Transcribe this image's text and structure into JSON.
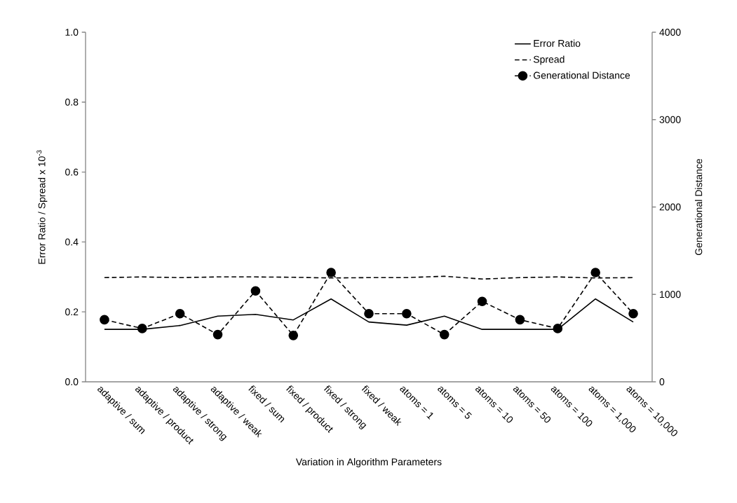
{
  "chart_data": {
    "type": "line",
    "xlabel": "Variation in Algorithm Parameters",
    "ylabel": "Error Ratio / Spread x 10$^{-3}$",
    "y2label": "Generational Distance",
    "categories": [
      "adaptive / sum",
      "adaptive / product",
      "adaptive / strong",
      "adaptive / weak",
      "fixed / sum",
      "fixed / product",
      "fixed / strong",
      "fixed / weak",
      "atoms = 1",
      "atoms = 5",
      "atoms = 10",
      "atoms = 50",
      "atoms = 100",
      "atoms = 1,000",
      "atoms = 10,000"
    ],
    "series": [
      {
        "name": "Error Ratio",
        "color": "#000000",
        "line_style": "solid",
        "marker": "none",
        "values": [
          0.15,
          0.15,
          0.161,
          0.188,
          0.193,
          0.177,
          0.237,
          0.171,
          0.162,
          0.188,
          0.15,
          0.15,
          0.15,
          0.237,
          0.171
        ]
      },
      {
        "name": "Spread",
        "color": "#000000",
        "line_style": "dashed",
        "marker": "none",
        "values": [
          0.298,
          0.3,
          0.298,
          0.3,
          0.3,
          0.299,
          0.297,
          0.298,
          0.298,
          0.302,
          0.294,
          0.298,
          0.3,
          0.297,
          0.298
        ]
      },
      {
        "name": "Generational Distance",
        "color": "#000000",
        "line_style": "dashed",
        "marker": "circle",
        "axis": "y2",
        "values": [
          710,
          610,
          780,
          540,
          1040,
          530,
          1250,
          780,
          780,
          540,
          920,
          710,
          610,
          1250,
          780
        ]
      }
    ],
    "ylim": [
      0,
      1
    ],
    "yticks": [
      {
        "value": 0,
        "label": "0.0"
      },
      {
        "value": 0.2,
        "label": "0.2"
      },
      {
        "value": 0.4,
        "label": "0.4"
      },
      {
        "value": 0.6,
        "label": "0.6"
      },
      {
        "value": 0.8,
        "label": "0.8"
      },
      {
        "value": 1,
        "label": "1.0"
      }
    ],
    "y2lim": [
      0,
      4000
    ],
    "y2ticks": [
      0,
      1000,
      2000,
      3000,
      4000
    ],
    "grid": false,
    "legend": "top right"
  }
}
